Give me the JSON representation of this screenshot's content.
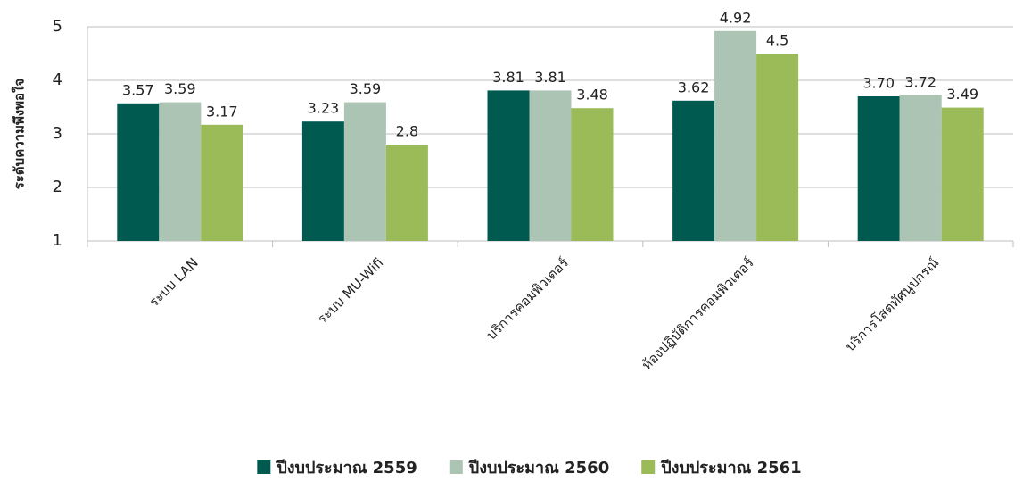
{
  "chart_data": {
    "type": "bar",
    "y_label": "ระดับความพึงพอใจ",
    "categories": [
      "ระบบ LAN",
      "ระบบ MU-Wifi",
      "บริการคอมพิวเตอร์",
      "ห้องปฏิบัติการคอมพิวเตอร์",
      "บริการโสตทัศนูปกรณ์"
    ],
    "series": [
      {
        "name": "ปีงบประมาณ 2559",
        "color": "#005a50",
        "values": [
          3.57,
          3.23,
          3.81,
          3.62,
          3.7
        ],
        "value_labels": [
          "3.57",
          "3.23",
          "3.81",
          "3.62",
          "3.70"
        ]
      },
      {
        "name": "ปีงบประมาณ 2560",
        "color": "#abc4b3",
        "values": [
          3.59,
          3.59,
          3.81,
          4.92,
          3.72
        ],
        "value_labels": [
          "3.59",
          "3.59",
          "3.81",
          "4.92",
          "3.72"
        ]
      },
      {
        "name": "ปีงบประมาณ 2561",
        "color": "#9bbb59",
        "values": [
          3.17,
          2.8,
          3.48,
          4.5,
          3.49
        ],
        "value_labels": [
          "3.17",
          "2.8",
          "3.48",
          "4.5",
          "3.49"
        ]
      }
    ],
    "ylim": [
      1,
      5
    ],
    "yticks": [
      1,
      2,
      3,
      4,
      5
    ],
    "grid": true,
    "legend": "bottom"
  }
}
